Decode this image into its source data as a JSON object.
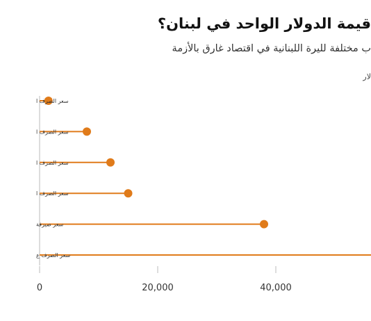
{
  "header": {
    "title": "قيمة الدولار الواحد في لبنان؟",
    "subtitle": "ب مختلفة لليرة اللبنانية في اقتصاد غارق بالأزمة",
    "unit": "لار"
  },
  "colors": {
    "accent": "#e07b1a",
    "axis": "#bbbbbb"
  },
  "chart_data": {
    "type": "lollipop",
    "orientation": "horizontal",
    "categories": [
      "سعر الصرف ا",
      "سعر الصرف ا",
      "سعر الصرف ا",
      "سعر الصرف ا",
      "سعر صيرفة",
      "سعر الصرف ع"
    ],
    "values": [
      1500,
      8000,
      12000,
      15000,
      38000,
      60000
    ],
    "xlim": [
      0,
      55000
    ],
    "xticks": [
      0,
      20000,
      40000
    ],
    "xtick_labels": [
      "0",
      "20,000",
      "40,000"
    ],
    "grid": false
  }
}
